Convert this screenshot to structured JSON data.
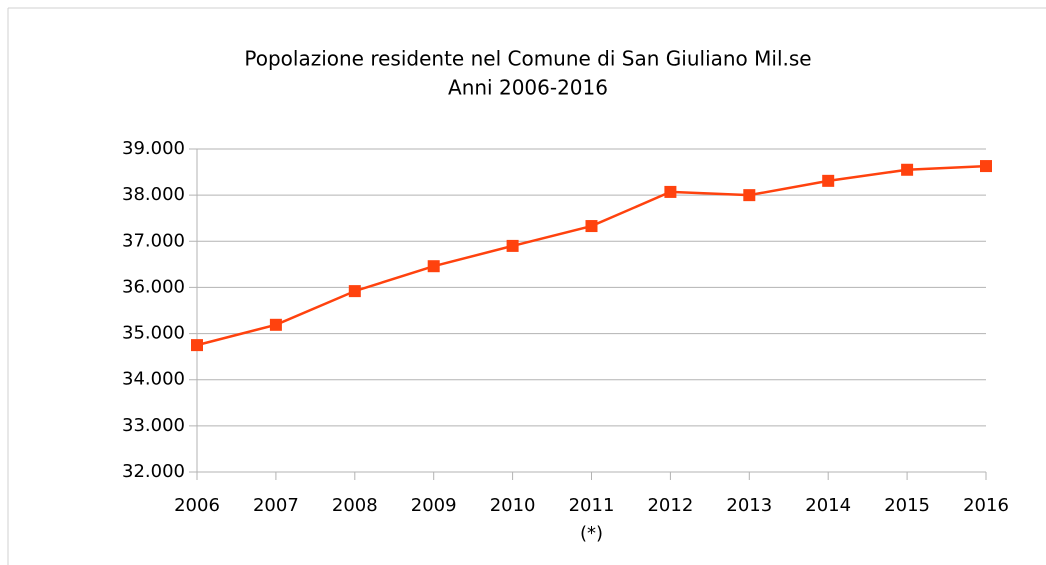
{
  "chart_data": {
    "type": "line",
    "title": [
      "Popolazione residente nel Comune di San Giuliano Mil.se",
      "Anni 2006-2016"
    ],
    "categories": [
      "2006",
      "2007",
      "2008",
      "2009",
      "2010",
      "2011",
      "2012",
      "2013",
      "2014",
      "2015",
      "2016"
    ],
    "annotations": [
      {
        "text": "(*)",
        "category": "2011"
      }
    ],
    "series": [
      {
        "name": "Popolazione",
        "color": "#ff420e",
        "values": [
          34750,
          35190,
          35920,
          36460,
          36900,
          37330,
          38070,
          38000,
          38310,
          38550,
          38630
        ]
      }
    ],
    "ylim": [
      32000,
      39000
    ],
    "yticks": [
      {
        "value": 32000,
        "label": "32.000"
      },
      {
        "value": 33000,
        "label": "33.000"
      },
      {
        "value": 34000,
        "label": "34.000"
      },
      {
        "value": 35000,
        "label": "35.000"
      },
      {
        "value": 36000,
        "label": "36.000"
      },
      {
        "value": 37000,
        "label": "37.000"
      },
      {
        "value": 38000,
        "label": "38.000"
      },
      {
        "value": 39000,
        "label": "39.000"
      }
    ],
    "grid": true,
    "legend": false
  }
}
